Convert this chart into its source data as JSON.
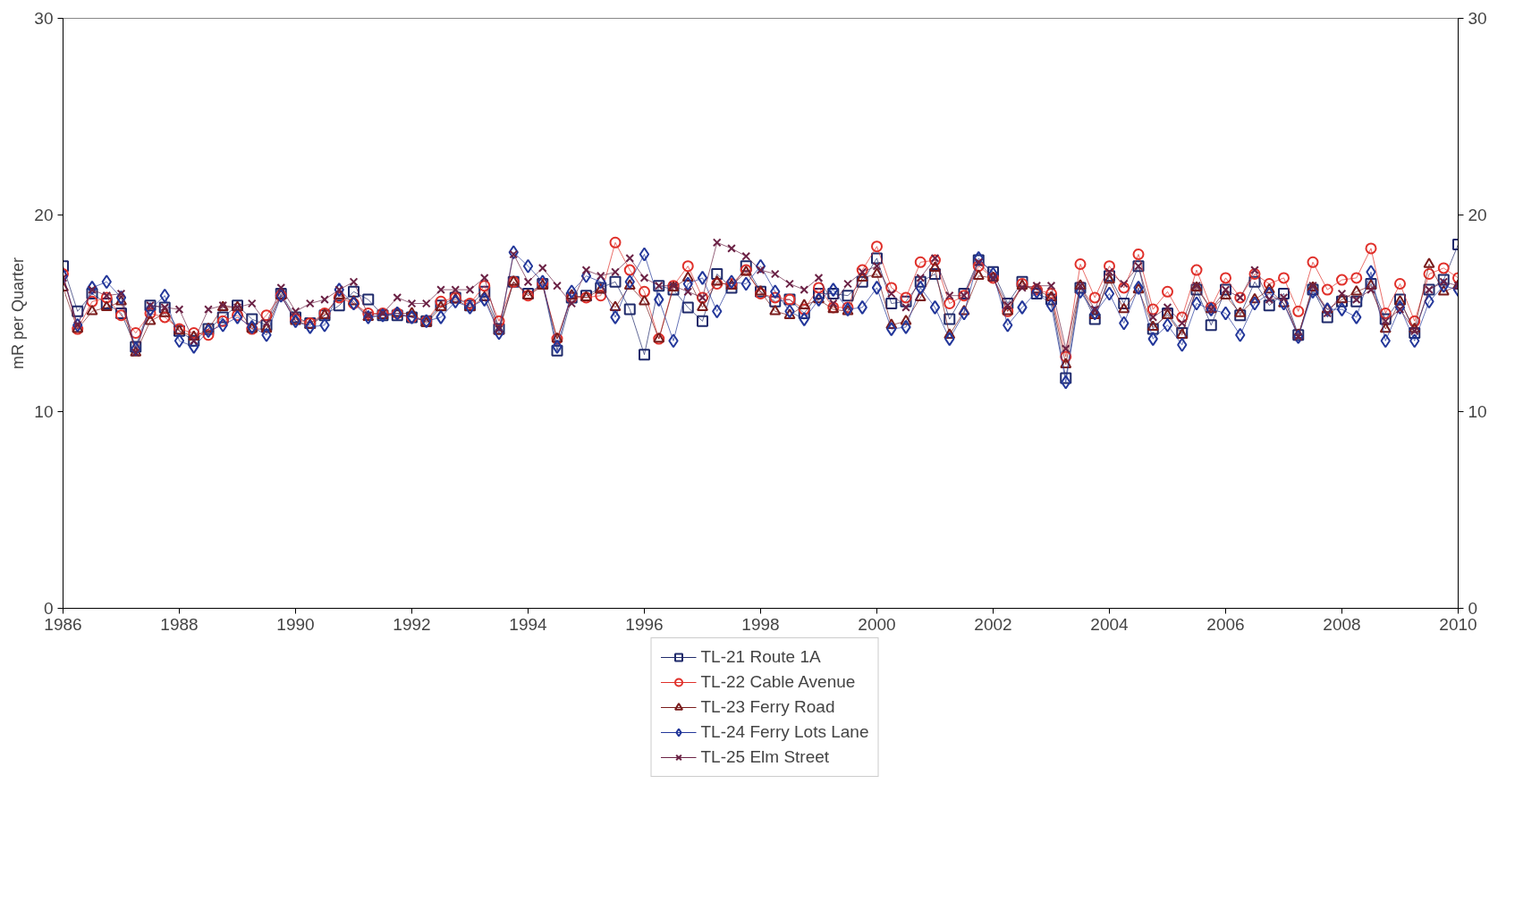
{
  "chart_data": {
    "type": "line",
    "ylabel": "mR per Quarter",
    "x": [
      1986,
      1986.25,
      1986.5,
      1986.75,
      1987,
      1987.25,
      1987.5,
      1987.75,
      1988,
      1988.25,
      1988.5,
      1988.75,
      1989,
      1989.25,
      1989.5,
      1989.75,
      1990,
      1990.25,
      1990.5,
      1990.75,
      1991,
      1991.25,
      1991.5,
      1991.75,
      1992,
      1992.25,
      1992.5,
      1992.75,
      1993,
      1993.25,
      1993.5,
      1993.75,
      1994,
      1994.25,
      1994.5,
      1994.75,
      1995,
      1995.25,
      1995.5,
      1995.75,
      1996,
      1996.25,
      1996.5,
      1996.75,
      1997,
      1997.25,
      1997.5,
      1997.75,
      1998,
      1998.25,
      1998.5,
      1998.75,
      1999,
      1999.25,
      1999.5,
      1999.75,
      2000,
      2000.25,
      2000.5,
      2000.75,
      2001,
      2001.25,
      2001.5,
      2001.75,
      2002,
      2002.25,
      2002.5,
      2002.75,
      2003,
      2003.25,
      2003.5,
      2003.75,
      2004,
      2004.25,
      2004.5,
      2004.75,
      2005,
      2005.25,
      2005.5,
      2005.75,
      2006,
      2006.25,
      2006.5,
      2006.75,
      2007,
      2007.25,
      2007.5,
      2007.75,
      2008,
      2008.25,
      2008.5,
      2008.75,
      2009,
      2009.25,
      2009.5,
      2009.75,
      2010
    ],
    "series": [
      {
        "name": "TL-21 Route 1A",
        "color": "#1f2a6b",
        "marker": "square",
        "values": [
          17.4,
          15.1,
          16.0,
          15.5,
          15.0,
          13.3,
          15.4,
          15.3,
          14.1,
          13.6,
          14.2,
          14.8,
          15.4,
          14.7,
          14.4,
          16.0,
          14.8,
          14.5,
          14.9,
          15.4,
          16.1,
          15.7,
          14.9,
          14.9,
          14.8,
          14.6,
          15.4,
          15.8,
          15.4,
          16.1,
          14.2,
          16.6,
          16.0,
          16.5,
          13.1,
          15.8,
          15.9,
          16.3,
          16.6,
          15.2,
          12.9,
          16.4,
          16.2,
          15.3,
          14.6,
          17.0,
          16.3,
          17.4,
          16.1,
          15.6,
          15.7,
          15.0,
          16.0,
          16.0,
          15.9,
          16.6,
          17.8,
          15.5,
          15.6,
          16.6,
          17.0,
          14.7,
          16.0,
          17.7,
          17.1,
          15.5,
          16.6,
          16.0,
          15.7,
          11.7,
          16.3,
          14.7,
          16.9,
          15.5,
          17.4,
          14.2,
          15.0,
          14.0,
          16.2,
          14.4,
          16.2,
          14.9,
          16.6,
          15.4,
          16.0,
          13.9,
          16.2,
          14.8,
          15.6,
          15.6,
          16.5,
          14.7,
          15.7,
          14.0,
          16.2,
          16.7,
          18.5
        ]
      },
      {
        "name": "TL-22 Cable Avenue",
        "color": "#e0302a",
        "marker": "circle",
        "values": [
          17.0,
          14.2,
          15.6,
          15.8,
          14.9,
          14.0,
          15.0,
          14.8,
          14.2,
          14.0,
          13.9,
          14.6,
          14.9,
          14.2,
          14.9,
          15.9,
          14.7,
          14.5,
          15.0,
          15.8,
          15.5,
          15.0,
          15.0,
          15.0,
          14.8,
          14.6,
          15.6,
          15.8,
          15.5,
          16.4,
          14.6,
          16.6,
          15.9,
          16.5,
          13.7,
          15.8,
          15.8,
          15.9,
          18.6,
          17.2,
          16.1,
          13.7,
          16.4,
          17.4,
          15.8,
          16.5,
          16.5,
          17.2,
          16.0,
          15.8,
          15.7,
          15.2,
          16.3,
          15.3,
          15.3,
          17.2,
          18.4,
          16.3,
          15.8,
          17.6,
          17.7,
          15.5,
          15.9,
          17.4,
          16.8,
          15.1,
          16.5,
          16.2,
          16.0,
          12.8,
          17.5,
          15.8,
          17.4,
          16.3,
          18.0,
          15.2,
          16.1,
          14.8,
          17.2,
          15.3,
          16.8,
          15.8,
          17.0,
          16.5,
          16.8,
          15.1,
          17.6,
          16.2,
          16.7,
          16.8,
          18.3,
          15.0,
          16.5,
          14.6,
          17.0,
          17.3,
          16.8
        ]
      },
      {
        "name": "TL-23 Ferry Road",
        "color": "#7a1c1c",
        "marker": "triangle",
        "values": [
          16.3,
          14.2,
          15.1,
          15.3,
          15.6,
          13.0,
          14.6,
          15.0,
          14.1,
          13.8,
          14.2,
          15.3,
          15.3,
          14.2,
          14.2,
          15.9,
          14.6,
          14.4,
          14.9,
          15.9,
          15.6,
          14.8,
          14.9,
          15.0,
          15.0,
          14.5,
          15.3,
          15.7,
          15.3,
          15.8,
          14.1,
          16.6,
          15.9,
          16.4,
          13.7,
          15.9,
          15.8,
          16.2,
          15.3,
          16.4,
          15.6,
          13.7,
          16.3,
          16.8,
          15.3,
          16.6,
          16.4,
          17.1,
          16.1,
          15.1,
          14.9,
          15.4,
          15.7,
          15.2,
          15.1,
          16.8,
          17.0,
          14.4,
          14.6,
          15.8,
          17.3,
          13.9,
          15.1,
          16.9,
          16.8,
          15.1,
          16.4,
          16.2,
          15.8,
          12.4,
          16.4,
          14.9,
          16.7,
          15.2,
          16.2,
          14.3,
          14.9,
          13.9,
          16.3,
          15.2,
          15.9,
          15.0,
          15.7,
          16.2,
          15.5,
          13.9,
          16.3,
          15.2,
          15.7,
          16.1,
          16.4,
          14.2,
          15.6,
          14.2,
          17.5,
          16.1,
          16.4
        ]
      },
      {
        "name": "TL-24 Ferry Lots Lane",
        "color": "#23379a",
        "marker": "diamond",
        "values": [
          16.9,
          14.4,
          16.3,
          16.6,
          15.8,
          13.2,
          15.2,
          15.9,
          13.6,
          13.3,
          14.1,
          14.4,
          14.8,
          14.3,
          13.9,
          15.9,
          14.6,
          14.3,
          14.4,
          16.2,
          15.5,
          14.8,
          14.9,
          15.0,
          14.8,
          14.6,
          14.8,
          15.6,
          15.3,
          15.7,
          14.0,
          18.1,
          17.4,
          16.6,
          13.3,
          16.1,
          16.9,
          16.6,
          14.8,
          16.6,
          18.0,
          15.7,
          13.6,
          16.5,
          16.8,
          15.1,
          16.6,
          16.5,
          17.4,
          16.1,
          15.1,
          14.7,
          15.7,
          16.2,
          15.2,
          15.3,
          16.3,
          14.2,
          14.3,
          16.3,
          15.3,
          13.7,
          15.0,
          17.8,
          17.0,
          14.4,
          15.3,
          16.1,
          15.4,
          11.5,
          16.1,
          15.0,
          16.0,
          14.5,
          16.3,
          13.7,
          14.4,
          13.4,
          15.5,
          15.2,
          15.0,
          13.9,
          15.5,
          16.0,
          15.5,
          13.8,
          16.1,
          15.2,
          15.2,
          14.8,
          17.1,
          13.6,
          15.3,
          13.6,
          15.6,
          16.4,
          16.2
        ]
      },
      {
        "name": "TL-25 Elm Street",
        "color": "#6b2245",
        "marker": "cross",
        "values": [
          16.8,
          14.4,
          16.2,
          15.9,
          16.0,
          13.0,
          15.4,
          15.3,
          15.2,
          13.6,
          15.2,
          15.4,
          15.3,
          15.5,
          14.5,
          16.3,
          15.1,
          15.5,
          15.7,
          16.2,
          16.6,
          14.9,
          15.0,
          15.8,
          15.5,
          15.5,
          16.2,
          16.2,
          16.2,
          16.8,
          14.2,
          18.0,
          16.6,
          17.3,
          16.4,
          15.5,
          17.2,
          16.9,
          17.1,
          17.8,
          16.8,
          16.4,
          16.4,
          16.1,
          15.8,
          18.6,
          18.3,
          17.9,
          17.2,
          17.0,
          16.5,
          16.2,
          16.8,
          15.5,
          16.5,
          17.1,
          17.4,
          16.0,
          15.3,
          16.8,
          17.8,
          15.9,
          15.9,
          17.6,
          16.8,
          15.4,
          16.3,
          16.4,
          16.4,
          13.2,
          16.4,
          15.2,
          17.1,
          16.5,
          17.4,
          14.8,
          15.3,
          14.5,
          16.4,
          15.2,
          16.2,
          15.8,
          17.2,
          15.7,
          15.8,
          13.8,
          16.4,
          15.0,
          16.0,
          15.7,
          16.2,
          14.6,
          15.2,
          14.1,
          16.2,
          16.6,
          16.4
        ]
      }
    ],
    "xlim": [
      1986,
      2010
    ],
    "xticks": [
      1986,
      1988,
      1990,
      1992,
      1994,
      1996,
      1998,
      2000,
      2002,
      2004,
      2006,
      2008,
      2010
    ],
    "ylim": [
      0,
      30
    ],
    "yticks": [
      0,
      10,
      20,
      30
    ],
    "y2lim": [
      0,
      30
    ],
    "y2ticks": [
      0,
      10,
      20,
      30
    ],
    "grid": false,
    "legend": "bottom",
    "line_style": "solid"
  }
}
